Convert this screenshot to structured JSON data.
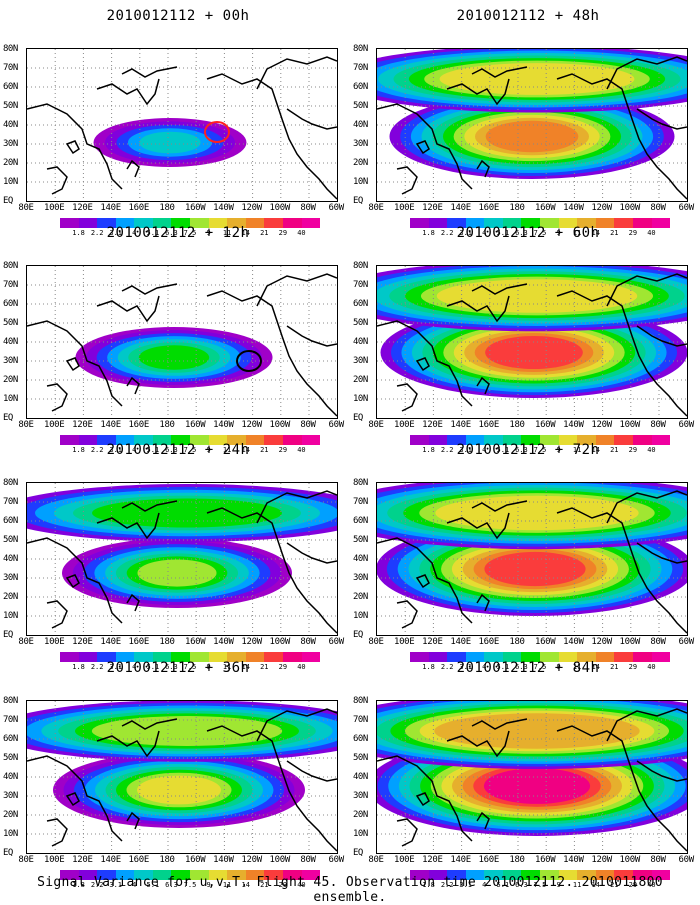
{
  "panels": [
    {
      "title": "2010012112 + 00h",
      "level": 0.15,
      "ring": "red"
    },
    {
      "title": "2010012112 + 48h",
      "level": 0.75,
      "ring": "none"
    },
    {
      "title": "2010012112 + 12h",
      "level": 0.35,
      "ring": "black"
    },
    {
      "title": "2010012112 + 60h",
      "level": 0.85,
      "ring": "none"
    },
    {
      "title": "2010012112 + 24h",
      "level": 0.5,
      "ring": "none"
    },
    {
      "title": "2010012112 + 72h",
      "level": 0.9,
      "ring": "none"
    },
    {
      "title": "2010012112 + 36h",
      "level": 0.6,
      "ring": "none"
    },
    {
      "title": "2010012112 + 84h",
      "level": 1.0,
      "ring": "none"
    }
  ],
  "lat_labels": [
    "80N",
    "70N",
    "60N",
    "50N",
    "40N",
    "30N",
    "20N",
    "10N",
    "EQ"
  ],
  "lon_labels": [
    "80E",
    "100E",
    "120E",
    "140E",
    "160E",
    "180",
    "160W",
    "140W",
    "120W",
    "100W",
    "80W",
    "60W"
  ],
  "colorbar": {
    "labels": [
      "1.8",
      "2.2",
      "3.1",
      "4",
      "5.1",
      "6.3",
      "7.5",
      "9",
      "11",
      "14",
      "21",
      "29",
      "40"
    ],
    "colors": [
      "#a000c8",
      "#8200dc",
      "#1e3cff",
      "#00a0ff",
      "#00c8c8",
      "#00d28c",
      "#00dc00",
      "#a0e632",
      "#e6dc32",
      "#e6af2d",
      "#f08228",
      "#fa3c3c",
      "#f00082"
    ]
  },
  "caption": "Signal Variance for u,v,T. Flight 45. Observation time 2010012112. 2010011800 ensemble."
}
